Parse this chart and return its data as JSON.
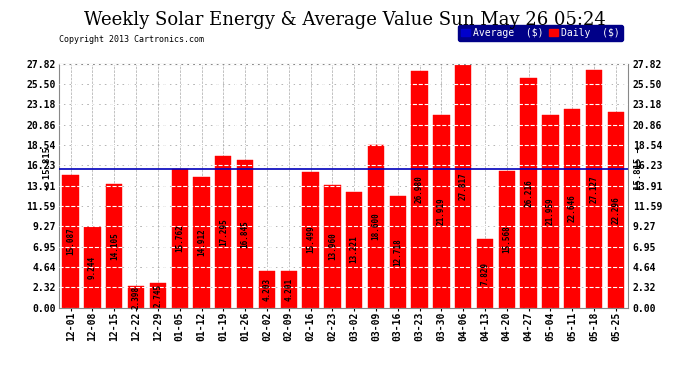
{
  "title": "Weekly Solar Energy & Average Value Sun May 26 05:24",
  "copyright": "Copyright 2013 Cartronics.com",
  "categories": [
    "12-01",
    "12-08",
    "12-15",
    "12-22",
    "12-29",
    "01-05",
    "01-12",
    "01-19",
    "01-26",
    "02-02",
    "02-09",
    "02-16",
    "02-23",
    "03-02",
    "03-09",
    "03-16",
    "03-23",
    "03-30",
    "04-06",
    "04-13",
    "04-20",
    "04-27",
    "05-04",
    "05-11",
    "05-18",
    "05-25"
  ],
  "values": [
    15.087,
    9.244,
    14.105,
    2.398,
    2.745,
    15.762,
    14.912,
    17.295,
    16.845,
    4.203,
    4.201,
    15.499,
    13.96,
    13.221,
    18.6,
    12.718,
    26.98,
    21.919,
    27.817,
    7.829,
    15.568,
    26.216,
    21.959,
    22.646,
    27.127,
    22.296
  ],
  "average_line": 15.815,
  "bar_color": "#ff0000",
  "average_line_color": "#0000bb",
  "background_color": "#ffffff",
  "plot_bg_color": "#ffffff",
  "grid_color": "#aaaaaa",
  "ylim": [
    0.0,
    27.82
  ],
  "yticks": [
    0.0,
    2.32,
    4.64,
    6.95,
    9.27,
    11.59,
    13.91,
    16.23,
    18.54,
    20.86,
    23.18,
    25.5,
    27.82
  ],
  "legend_avg_color": "#0000cc",
  "legend_daily_color": "#ff0000",
  "avg_label": "Average  ($)",
  "daily_label": "Daily  ($)",
  "title_fontsize": 13,
  "tick_fontsize": 7,
  "value_label_fontsize": 5.5,
  "dashed_line_color": "#ffffff",
  "avg_line_value": "15.815"
}
